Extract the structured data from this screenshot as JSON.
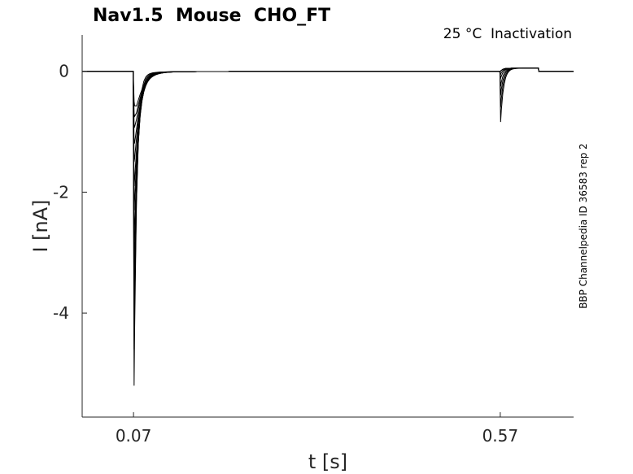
{
  "chart_data": {
    "type": "line",
    "title": "Nav1.5  Mouse  CHO_FT",
    "subtitle": "25 °C  Inactivation",
    "side_note": "BBP Channelpedia ID 36583 rep 2",
    "xlabel": "t [s]",
    "ylabel": "I [nA]",
    "xlim": [
      0.0,
      0.67
    ],
    "ylim": [
      -5.72,
      0.6
    ],
    "x_ticks": [
      0.07,
      0.57
    ],
    "x_tick_labels": [
      "0.07",
      "0.57"
    ],
    "y_ticks": [
      0,
      -2,
      -4
    ],
    "y_tick_labels": [
      "0",
      "-2",
      "-4"
    ],
    "grid": false,
    "line_color": "#000000",
    "protocol": {
      "first_step_time": 0.07,
      "second_step_time": 0.57,
      "second_step_end": 0.622,
      "first_step_peaks": [
        -5.2,
        -4.6,
        -3.9,
        -3.3,
        -2.8,
        -2.3,
        -1.9,
        -1.5,
        -1.2,
        -0.9,
        -0.7,
        -0.5
      ],
      "second_step_peaks": [
        -0.84,
        -0.6,
        -0.4,
        -0.25,
        -0.12,
        -0.05
      ],
      "plateau_second_step": 0.05
    }
  }
}
